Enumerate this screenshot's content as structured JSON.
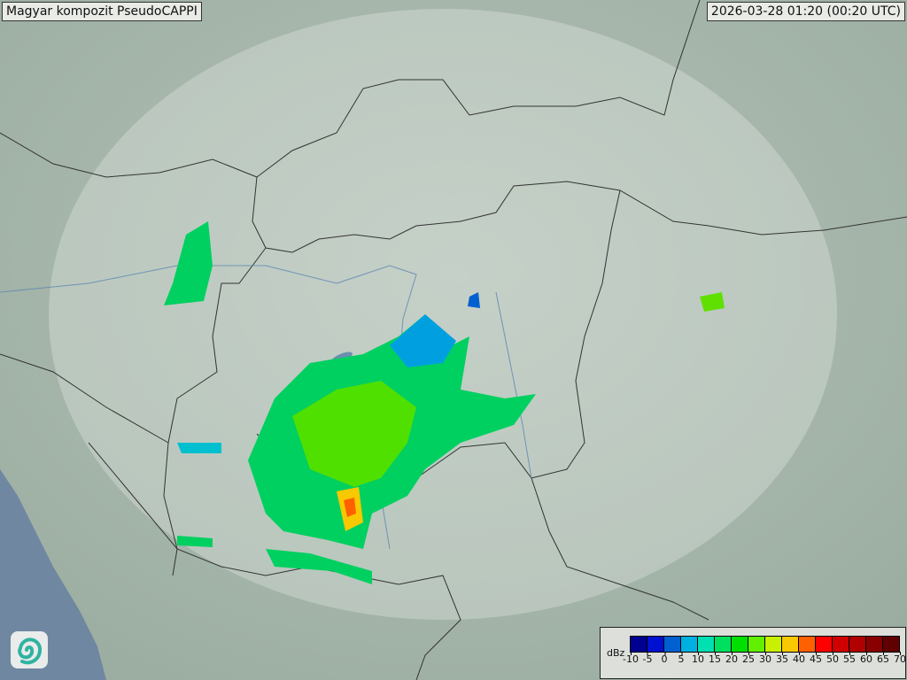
{
  "header": {
    "title": "Magyar kompozit  PseudoCAPPI",
    "timestamp": "2026-03-28 01:20 (00:20 UTC)"
  },
  "legend": {
    "unit": "dBz",
    "ticks": [
      "-10",
      "-5",
      "0",
      "5",
      "10",
      "15",
      "20",
      "25",
      "30",
      "35",
      "40",
      "45",
      "50",
      "55",
      "60",
      "65",
      "70"
    ],
    "colors": [
      "#000090",
      "#0010d0",
      "#0060d0",
      "#00b0e0",
      "#00e0b0",
      "#00e060",
      "#00e000",
      "#60f000",
      "#c8f000",
      "#f8c800",
      "#ff6000",
      "#ff0000",
      "#d00000",
      "#b00000",
      "#880000",
      "#600000"
    ]
  },
  "logo": {
    "icon": "swirl-logo-icon"
  }
}
